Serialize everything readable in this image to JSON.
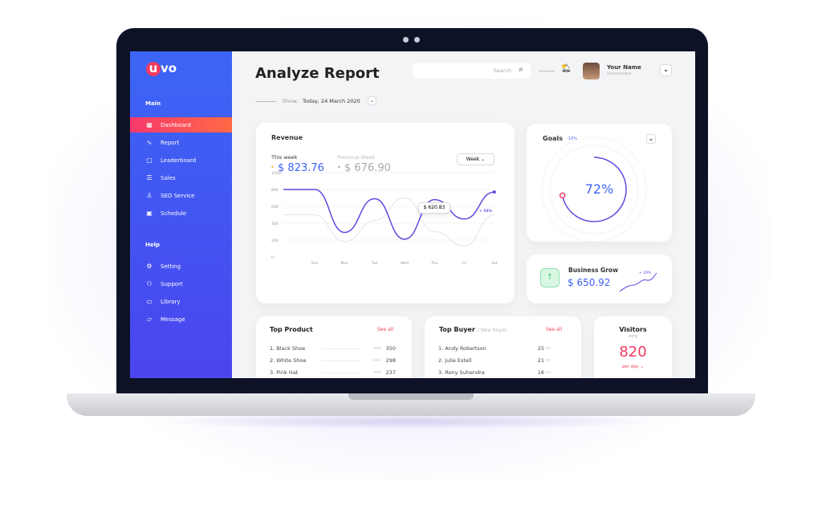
{
  "sidebar": {
    "logo": "uvo",
    "logo_mark": "u",
    "logo_rest": "vo",
    "main_label": "Main",
    "help_label": "Help",
    "main_items": [
      {
        "label": "Dashboard",
        "icon": "grid-icon",
        "active": true
      },
      {
        "label": "Report",
        "icon": "activity-icon"
      },
      {
        "label": "Leaderboard",
        "icon": "clipboard-icon"
      },
      {
        "label": "Sales",
        "icon": "database-icon"
      },
      {
        "label": "SEO Service",
        "icon": "user-icon"
      },
      {
        "label": "Schedule",
        "icon": "calendar-icon"
      }
    ],
    "help_items": [
      {
        "label": "Setting",
        "icon": "gear-icon"
      },
      {
        "label": "Support",
        "icon": "users-icon"
      },
      {
        "label": "Library",
        "icon": "folder-icon"
      },
      {
        "label": "Message",
        "icon": "message-icon"
      }
    ]
  },
  "header": {
    "title": "Analyze Report",
    "show_label": "Show:",
    "show_value": "Today, 24 March 2020",
    "search_placeholder": "Search",
    "user_name": "Your Name",
    "user_role": "Administrator"
  },
  "revenue": {
    "title": "Revenue",
    "this_week_label": "This week",
    "this_week_value": "$ 823.76",
    "prev_week_label": "Previous Week",
    "prev_week_value": "$ 676.90",
    "period": "Week",
    "tooltip": "$ 620.83",
    "end_label": "+ 53%"
  },
  "goals": {
    "title": "Goals",
    "change": "-10%",
    "percent_label": "72%",
    "percent": 72
  },
  "business": {
    "title": "Business Grow",
    "value": "$ 650.92",
    "change": "+ 20%"
  },
  "top_product": {
    "title": "Top Product",
    "see_all": "See all",
    "unit": "sold",
    "items": [
      {
        "name": "1. Black Shoe",
        "value": "350"
      },
      {
        "name": "2. White Shoe",
        "value": "298"
      },
      {
        "name": "3. Pink Hat",
        "value": "237"
      }
    ]
  },
  "top_buyer": {
    "title": "Top Buyer",
    "subtitle": "/ New buyer",
    "see_all": "See all",
    "unit": "trx",
    "items": [
      {
        "name": "1. Andy Robertson",
        "value": "25"
      },
      {
        "name": "2. Julie Estell",
        "value": "21"
      },
      {
        "name": "3. Rony Suhendra",
        "value": "16"
      }
    ]
  },
  "visitors": {
    "title": "Visitors",
    "sub": "avrg",
    "value": "820",
    "period": "per day"
  },
  "colors": {
    "accent": "#5b4be0",
    "blue": "#3e63f5",
    "pink": "#f23b5f",
    "green": "#7ddc9f"
  },
  "chart_data": {
    "type": "line",
    "x": [
      "Sun",
      "Mon",
      "Tue",
      "Wed",
      "Thu",
      "Fri",
      "Sat"
    ],
    "yticks": [
      0,
      200,
      400,
      600,
      800,
      1000
    ],
    "ylim": [
      0,
      1000
    ],
    "grid": true,
    "series": [
      {
        "name": "This week",
        "values": [
          800,
          290,
          690,
          210,
          680,
          450,
          770
        ],
        "color": "#5b4be0"
      },
      {
        "name": "Previous Week",
        "values": [
          500,
          180,
          430,
          700,
          300,
          130,
          500
        ],
        "color": "#e3e4ec"
      }
    ]
  }
}
